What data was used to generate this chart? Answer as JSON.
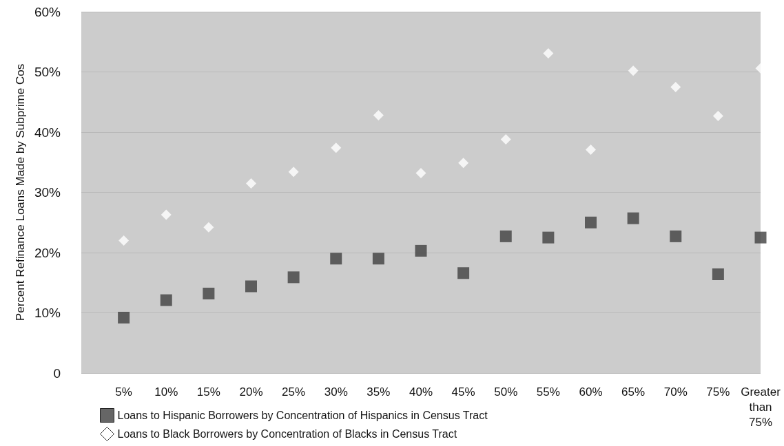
{
  "chart_data": {
    "type": "scatter",
    "ylabel": "Percent Refinance Loans Made by Subprime Cos",
    "categories": [
      "5%",
      "10%",
      "15%",
      "20%",
      "25%",
      "30%",
      "35%",
      "40%",
      "45%",
      "50%",
      "55%",
      "60%",
      "65%",
      "70%",
      "75%",
      "Greater than 75%"
    ],
    "series": [
      {
        "name": "Loans to Hispanic Borrowers by Concentration of Hispanics in Census Tract",
        "color": "#404040",
        "marker": "square",
        "values": [
          9.2,
          12.1,
          13.2,
          14.4,
          15.9,
          19.0,
          19.0,
          20.3,
          16.6,
          22.7,
          22.5,
          25.0,
          25.7,
          22.7,
          16.4,
          22.5
        ]
      },
      {
        "name": "Loans to Black Borrowers by Concentration of Blacks in Census Tract",
        "color": "#ffffff",
        "marker": "diamond",
        "values": [
          22.0,
          26.3,
          24.2,
          31.5,
          33.4,
          37.4,
          42.8,
          33.2,
          34.9,
          38.8,
          53.1,
          37.1,
          50.2,
          47.5,
          42.7,
          50.6
        ]
      }
    ],
    "ylim": [
      0,
      60
    ],
    "yticks": [
      0,
      {
        "value": 10,
        "label": "10%"
      },
      {
        "value": 20,
        "label": "20%"
      },
      {
        "value": 30,
        "label": "30%"
      },
      {
        "value": 40,
        "label": "40%"
      },
      {
        "value": 50,
        "label": "50%"
      },
      {
        "value": 60,
        "label": "60%"
      }
    ],
    "grid": "y",
    "legend": "bottom left"
  }
}
